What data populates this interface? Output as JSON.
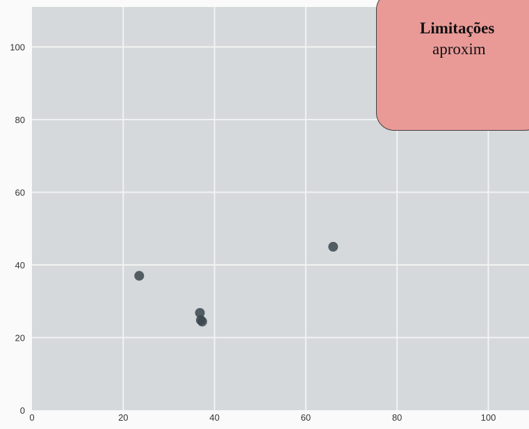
{
  "chart_data": {
    "type": "scatter",
    "title": "",
    "xlabel": "",
    "ylabel": "",
    "xlim": [
      0,
      110
    ],
    "ylim": [
      0,
      110
    ],
    "x_ticks": [
      "0",
      "20",
      "40",
      "60",
      "80",
      "100"
    ],
    "y_ticks": [
      "0",
      "20",
      "40",
      "60",
      "80",
      "100"
    ],
    "grid": true,
    "colors": {
      "background": "#d5d9dc",
      "grid": "#f2f2f2",
      "point": "#3b464e"
    },
    "points": [
      {
        "x": 23.5,
        "y": 37
      },
      {
        "x": 36.8,
        "y": 26.8
      },
      {
        "x": 37.0,
        "y": 24.8
      },
      {
        "x": 37.3,
        "y": 24.4
      },
      {
        "x": 66.0,
        "y": 45
      }
    ]
  },
  "callout": {
    "line1": "Limitações",
    "line2": "aproxim",
    "color": "#e99a97"
  }
}
